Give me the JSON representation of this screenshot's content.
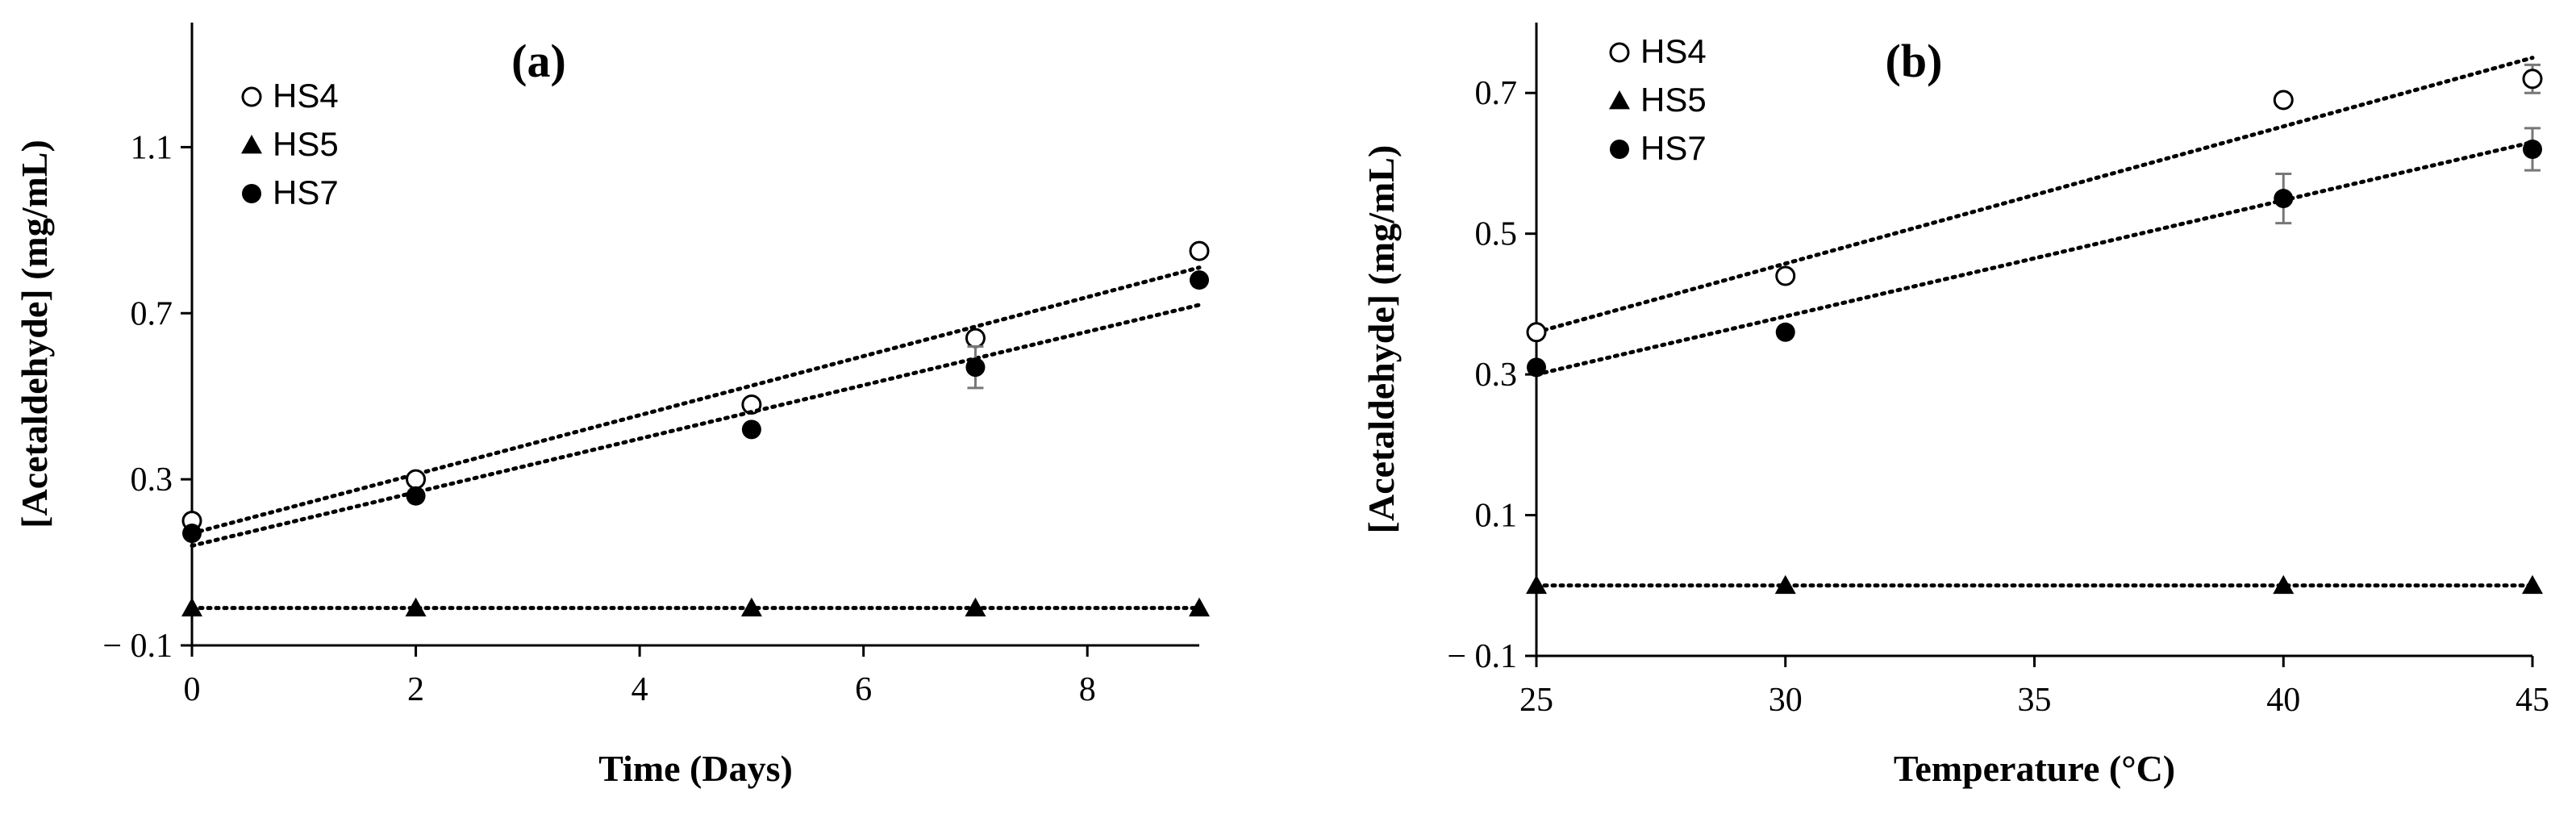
{
  "chart_data": [
    {
      "type": "scatter",
      "title": "(a)",
      "xlabel": "Time (Days)",
      "ylabel": "[Acetaldehyde] (mg/mL)",
      "xlim": [
        0,
        9
      ],
      "ylim": [
        -0.1,
        1.4
      ],
      "xticks": [
        "0",
        "2",
        "4",
        "6",
        "8"
      ],
      "yticks": [
        "− 0.1",
        "0.3",
        "0.7",
        "1.1"
      ],
      "legend_position": "top-left",
      "grid": false,
      "trendlines": "dotted linear fit per series",
      "series": [
        {
          "name": "HS4",
          "marker": "open-circle",
          "color": "#000000",
          "x": [
            0,
            2,
            5,
            7,
            9
          ],
          "y": [
            0.2,
            0.3,
            0.48,
            0.64,
            0.85
          ],
          "fit": {
            "x": [
              0,
              9
            ],
            "y": [
              0.17,
              0.81
            ]
          }
        },
        {
          "name": "HS5",
          "marker": "filled-triangle",
          "color": "#000000",
          "x": [
            0,
            2,
            5,
            7,
            9
          ],
          "y": [
            -0.01,
            -0.01,
            -0.01,
            -0.01,
            -0.01
          ],
          "fit": {
            "x": [
              0,
              9
            ],
            "y": [
              -0.01,
              -0.01
            ]
          }
        },
        {
          "name": "HS7",
          "marker": "filled-circle",
          "color": "#000000",
          "x": [
            0,
            2,
            5,
            7,
            9
          ],
          "y": [
            0.17,
            0.26,
            0.42,
            0.57,
            0.78
          ],
          "err": [
            0,
            0,
            0,
            0.05,
            0
          ],
          "fit": {
            "x": [
              0,
              9
            ],
            "y": [
              0.14,
              0.72
            ]
          }
        }
      ]
    },
    {
      "type": "scatter",
      "title": "(b)",
      "xlabel": "Temperature (°C)",
      "ylabel": "[Acetaldehyde] (mg/mL)",
      "xlim": [
        25,
        45
      ],
      "ylim": [
        -0.1,
        0.8
      ],
      "xticks": [
        "25",
        "30",
        "35",
        "40",
        "45"
      ],
      "yticks": [
        "− 0.1",
        "0.1",
        "0.3",
        "0.5",
        "0.7"
      ],
      "legend_position": "top-left",
      "grid": false,
      "trendlines": "dotted linear fit per series",
      "series": [
        {
          "name": "HS4",
          "marker": "open-circle",
          "color": "#000000",
          "x": [
            25,
            30,
            40,
            45
          ],
          "y": [
            0.36,
            0.44,
            0.69,
            0.72
          ],
          "err": [
            0,
            0,
            0,
            0.02
          ],
          "fit": {
            "x": [
              25,
              45
            ],
            "y": [
              0.36,
              0.75
            ]
          }
        },
        {
          "name": "HS5",
          "marker": "filled-triangle",
          "color": "#000000",
          "x": [
            25,
            30,
            40,
            45
          ],
          "y": [
            0.0,
            0.0,
            0.0,
            0.0
          ],
          "fit": {
            "x": [
              25,
              45
            ],
            "y": [
              0.0,
              0.0
            ]
          }
        },
        {
          "name": "HS7",
          "marker": "filled-circle",
          "color": "#000000",
          "x": [
            25,
            30,
            40,
            45
          ],
          "y": [
            0.31,
            0.36,
            0.55,
            0.62
          ],
          "err": [
            0,
            0,
            0.035,
            0.03
          ],
          "fit": {
            "x": [
              25,
              45
            ],
            "y": [
              0.3,
              0.63
            ]
          }
        }
      ]
    }
  ]
}
